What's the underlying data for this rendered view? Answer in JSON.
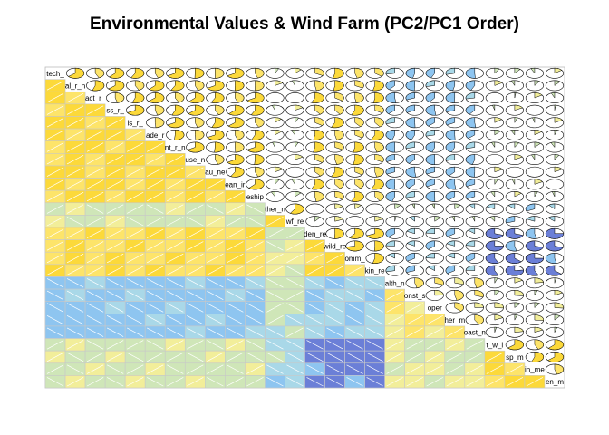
{
  "chart_data": {
    "type": "heatmap",
    "title": "Environmental Values & Wind Farm (PC2/PC1 Order)",
    "variables": [
      "tech_",
      "al_r_n",
      "act_r_",
      "ss_r_",
      "is_r_",
      "ade_r",
      "nt_r_n",
      "use_n",
      "au_ne",
      "ean_ir",
      "eship",
      "ther_n",
      "wf_re",
      "den_re",
      "wild_re",
      "omm_",
      "kin_re",
      "alth_n",
      "onst_s",
      "oper",
      "her_m",
      "oast_n",
      "t_w_l",
      "sp_m",
      "in_me",
      "en_m"
    ],
    "lower_panel": "shade",
    "upper_panel": "pie",
    "color_scale": {
      "strong_negative": "#6b7fd7",
      "negative": "#8ec5f0",
      "weak_negative": "#a9d8e8",
      "near_zero": "#cfe6b8",
      "weak_positive": "#f2ee9a",
      "positive": "#fde46a",
      "strong_positive": "#fcd93a"
    },
    "correlation_range": [
      -1,
      1
    ]
  }
}
